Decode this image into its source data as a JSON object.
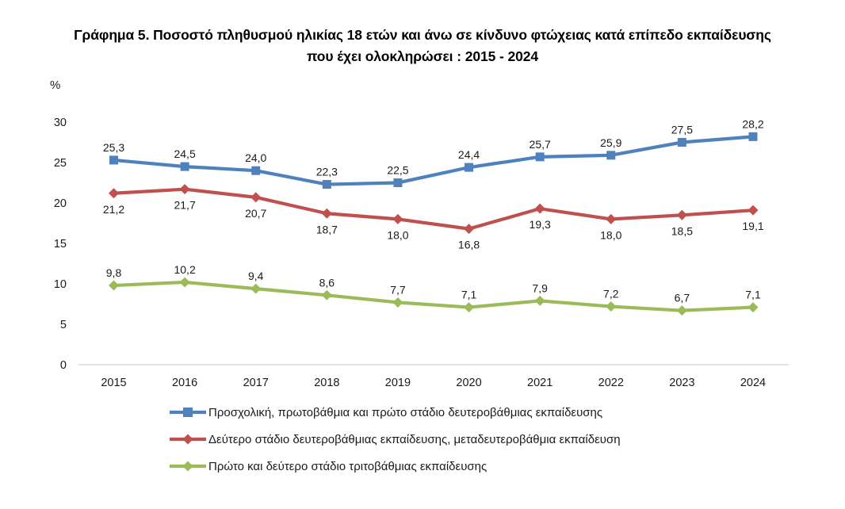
{
  "chart_data": {
    "type": "line",
    "title": "Γράφημα 5. Ποσοστό πληθυσμού ηλικίας 18 ετών και άνω σε κίνδυνο φτώχειας κατά επίπεδο εκπαίδευσης που έχει ολοκληρώσει : 2015 - 2024",
    "ylabel": "%",
    "xlabel": "",
    "categories": [
      "2015",
      "2016",
      "2017",
      "2018",
      "2019",
      "2020",
      "2021",
      "2022",
      "2023",
      "2024"
    ],
    "yticks": [
      0,
      5,
      10,
      15,
      20,
      25,
      30
    ],
    "ylim": [
      0,
      30
    ],
    "grid": false,
    "legend_position": "bottom",
    "decimal_separator": ",",
    "axis_line_color": "#d9d9d9",
    "series": [
      {
        "name": "Προσχολική, πρωτοβάθμια και πρώτο στάδιο δευτεροβάθμιας εκπαίδευσης",
        "color": "#4F81BD",
        "marker": "square",
        "label_position": "above",
        "values": [
          25.3,
          24.5,
          24.0,
          22.3,
          22.5,
          24.4,
          25.7,
          25.9,
          27.5,
          28.2
        ]
      },
      {
        "name": "Δεύτερο στάδιο δευτεροβάθμιας εκπαίδευσης, μεταδευτεροβάθμια εκπαίδευση",
        "color": "#C0504D",
        "marker": "diamond",
        "label_position": "below",
        "values": [
          21.2,
          21.7,
          20.7,
          18.7,
          18.0,
          16.8,
          19.3,
          18.0,
          18.5,
          19.1
        ]
      },
      {
        "name": "Πρώτο και δεύτερο στάδιο τριτοβάθμιας εκπαίδευσης",
        "color": "#9BBB59",
        "marker": "diamond",
        "label_position": "above",
        "values": [
          9.8,
          10.2,
          9.4,
          8.6,
          7.7,
          7.1,
          7.9,
          7.2,
          6.7,
          7.1
        ]
      }
    ]
  }
}
